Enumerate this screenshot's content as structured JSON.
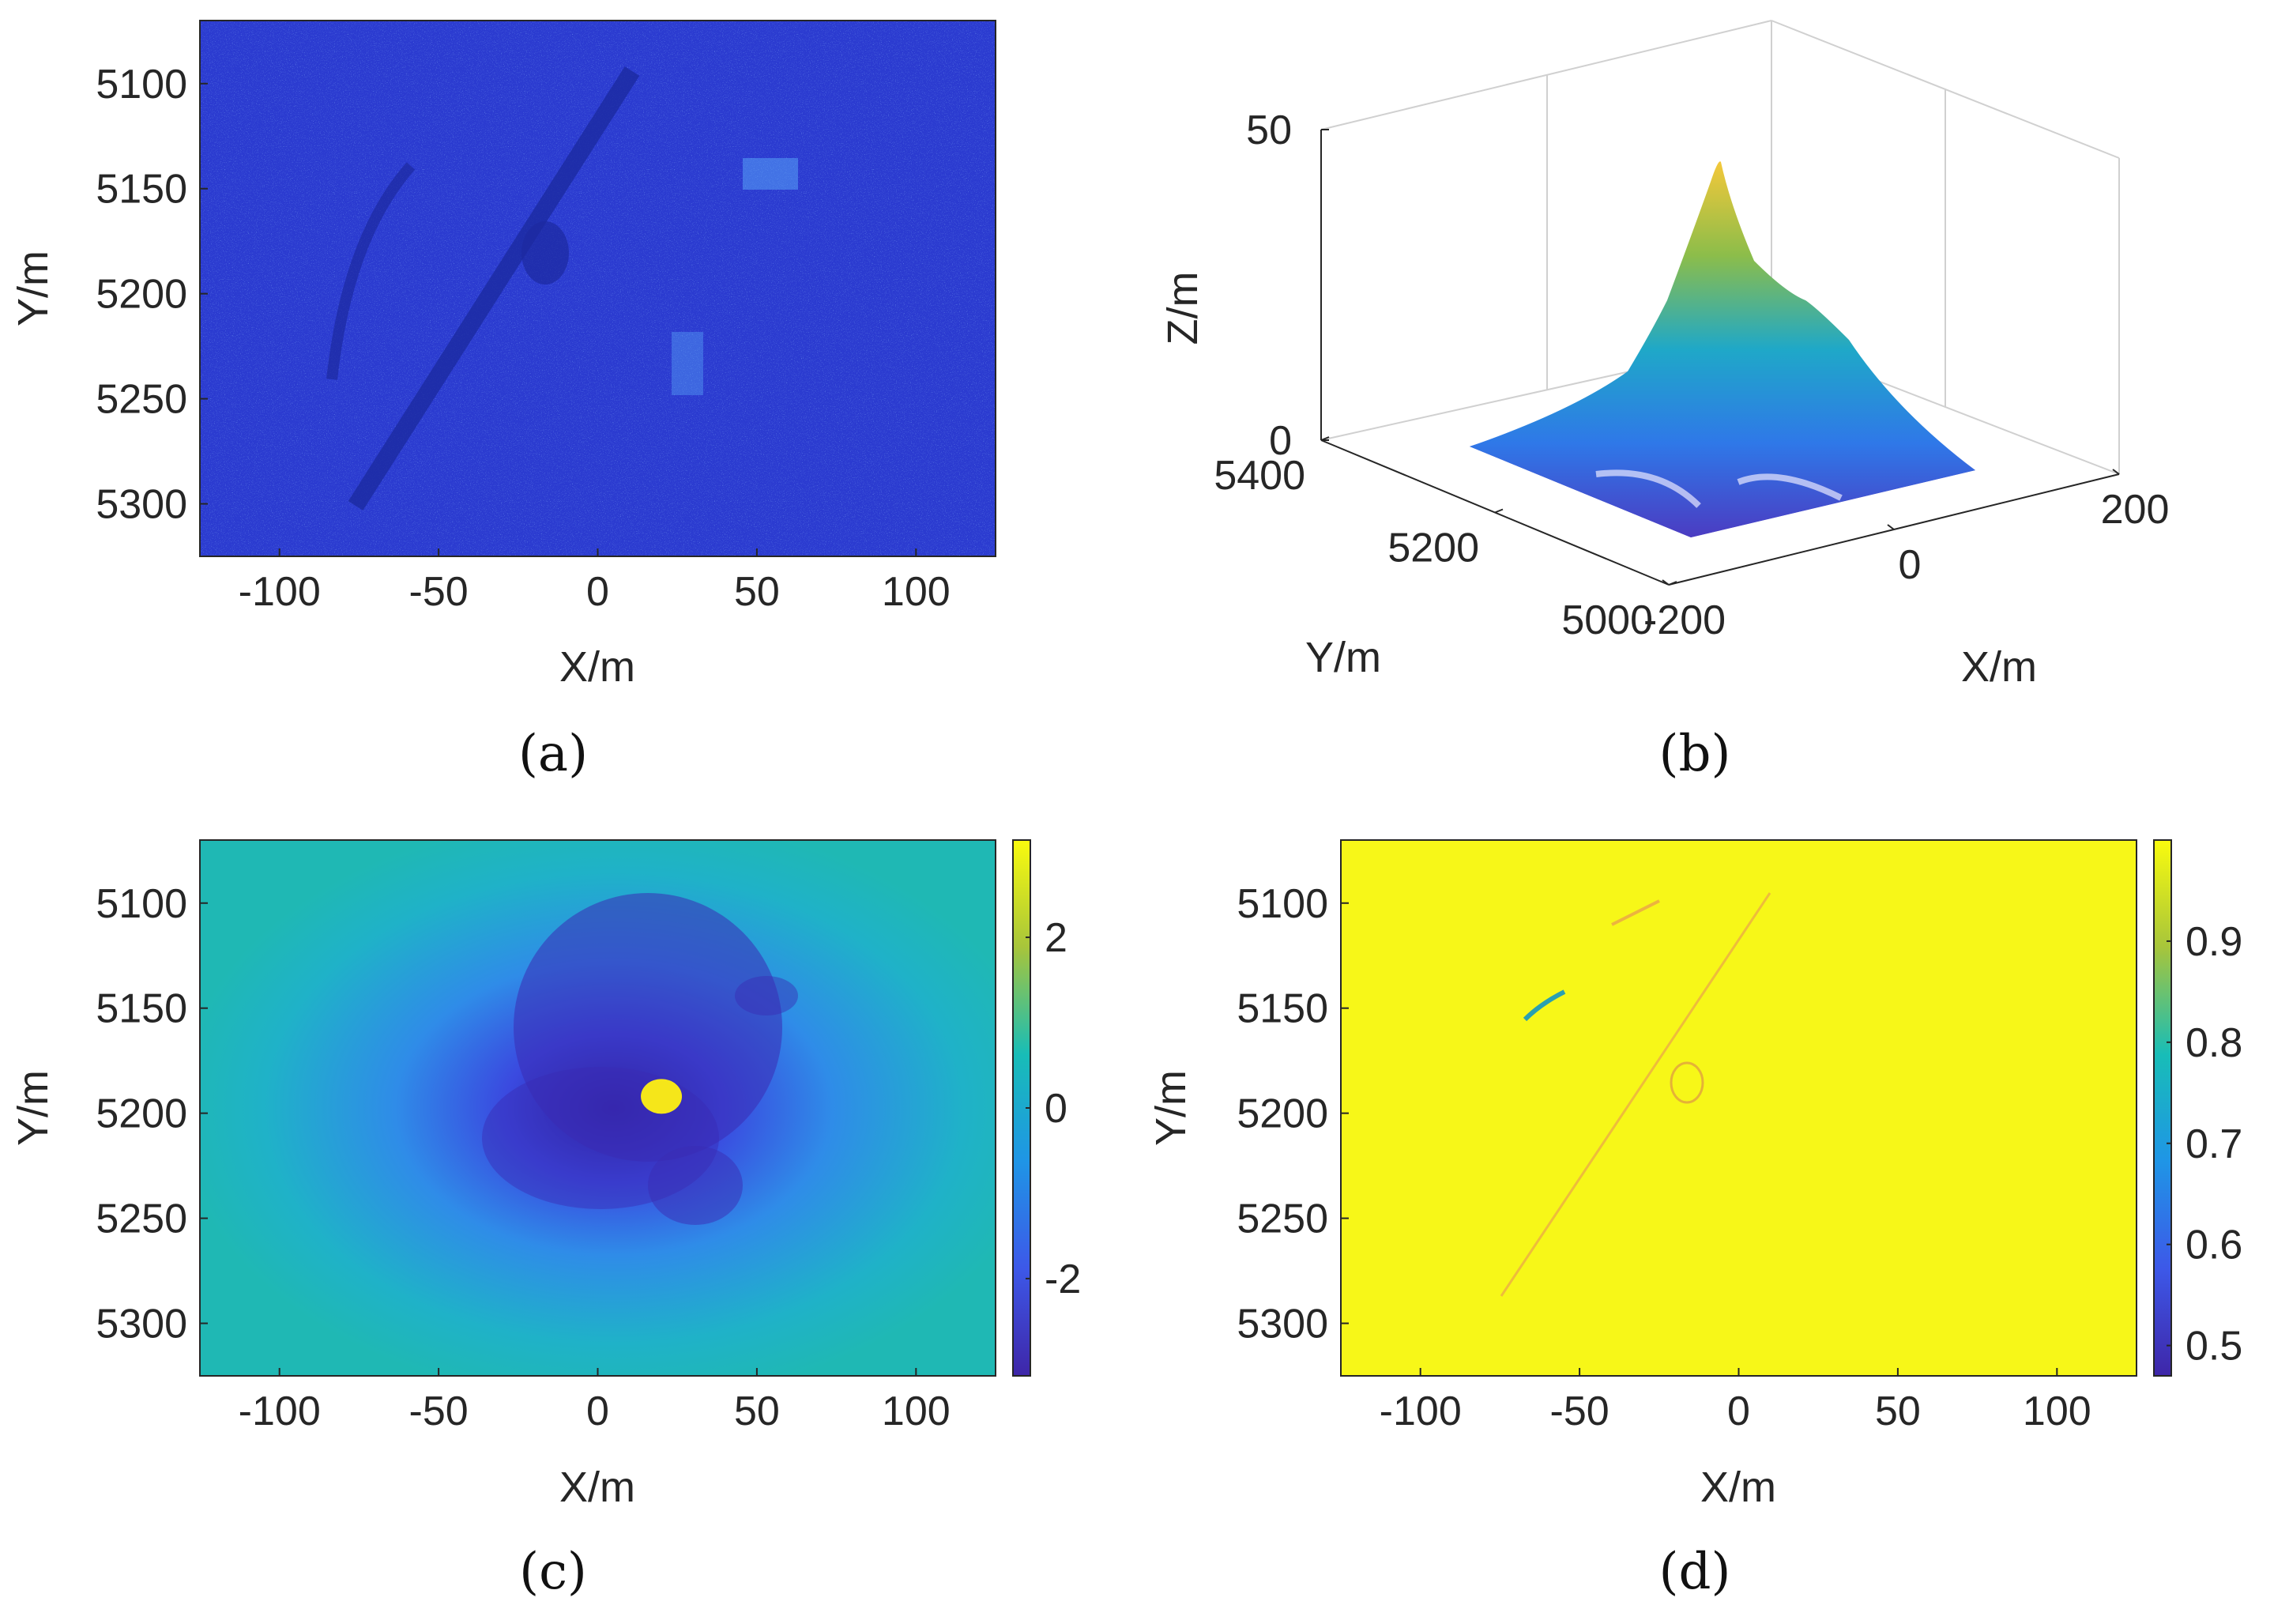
{
  "chart_data": [
    {
      "id": "a",
      "type": "heatmap",
      "caption": "(a)",
      "title": "",
      "xlabel": "X/m",
      "ylabel": "Y/m",
      "xlim": [
        -125,
        125
      ],
      "ylim": [
        5070,
        5325
      ],
      "y_reversed": true,
      "xticks": [
        -100,
        -50,
        0,
        50,
        100
      ],
      "yticks": [
        5100,
        5150,
        5200,
        5250,
        5300
      ],
      "description_of_values": "SAR amplitude image, dark blue background with brighter cyan speckle",
      "colormap": [
        "#1a1a8c",
        "#2030c8",
        "#3050e0",
        "#40a0f0",
        "#80e8ff"
      ]
    },
    {
      "id": "b",
      "type": "surface",
      "caption": "(b)",
      "title": "",
      "xlabel": "X/m",
      "ylabel": "Y/m",
      "zlabel": "Z/m",
      "xlim": [
        -200,
        200
      ],
      "ylim": [
        5000,
        5400
      ],
      "zlim": [
        0,
        50
      ],
      "xticks": [
        -200,
        0,
        200
      ],
      "yticks": [
        5000,
        5200,
        5400
      ],
      "zticks": [
        0,
        50
      ],
      "peak_height": 42,
      "colormap": [
        "#3e26a8",
        "#2e87f7",
        "#19c1c1",
        "#a2c435",
        "#f9d22c"
      ]
    },
    {
      "id": "c",
      "type": "heatmap",
      "caption": "(c)",
      "title": "",
      "xlabel": "X/m",
      "ylabel": "Y/m",
      "xlim": [
        -125,
        125
      ],
      "ylim": [
        5070,
        5325
      ],
      "y_reversed": true,
      "xticks": [
        -100,
        -50,
        0,
        50,
        100
      ],
      "yticks": [
        5100,
        5150,
        5200,
        5250,
        5300
      ],
      "colorbar": {
        "clim": [
          -3.14,
          3.14
        ],
        "ticks": [
          -2,
          0,
          2
        ]
      },
      "colormap": [
        "#3e26a8",
        "#2e87f7",
        "#19c1c1",
        "#a2c435",
        "#f9fb0e"
      ],
      "features": [
        {
          "label": "hot spot",
          "x": 20,
          "y": 5192,
          "value": 3.0
        }
      ]
    },
    {
      "id": "d",
      "type": "heatmap",
      "caption": "(d)",
      "title": "",
      "xlabel": "X/m",
      "ylabel": "Y/m",
      "xlim": [
        -125,
        125
      ],
      "ylim": [
        5070,
        5325
      ],
      "y_reversed": true,
      "xticks": [
        -100,
        -50,
        0,
        50,
        100
      ],
      "yticks": [
        5100,
        5150,
        5200,
        5250,
        5300
      ],
      "colorbar": {
        "clim": [
          0.47,
          1.0
        ],
        "ticks": [
          0.5,
          0.6,
          0.7,
          0.8,
          0.9
        ]
      },
      "colormap": [
        "#3e26a8",
        "#2e87f7",
        "#19c1c1",
        "#a2c435",
        "#f9fb0e"
      ],
      "background_value": 1.0
    }
  ]
}
